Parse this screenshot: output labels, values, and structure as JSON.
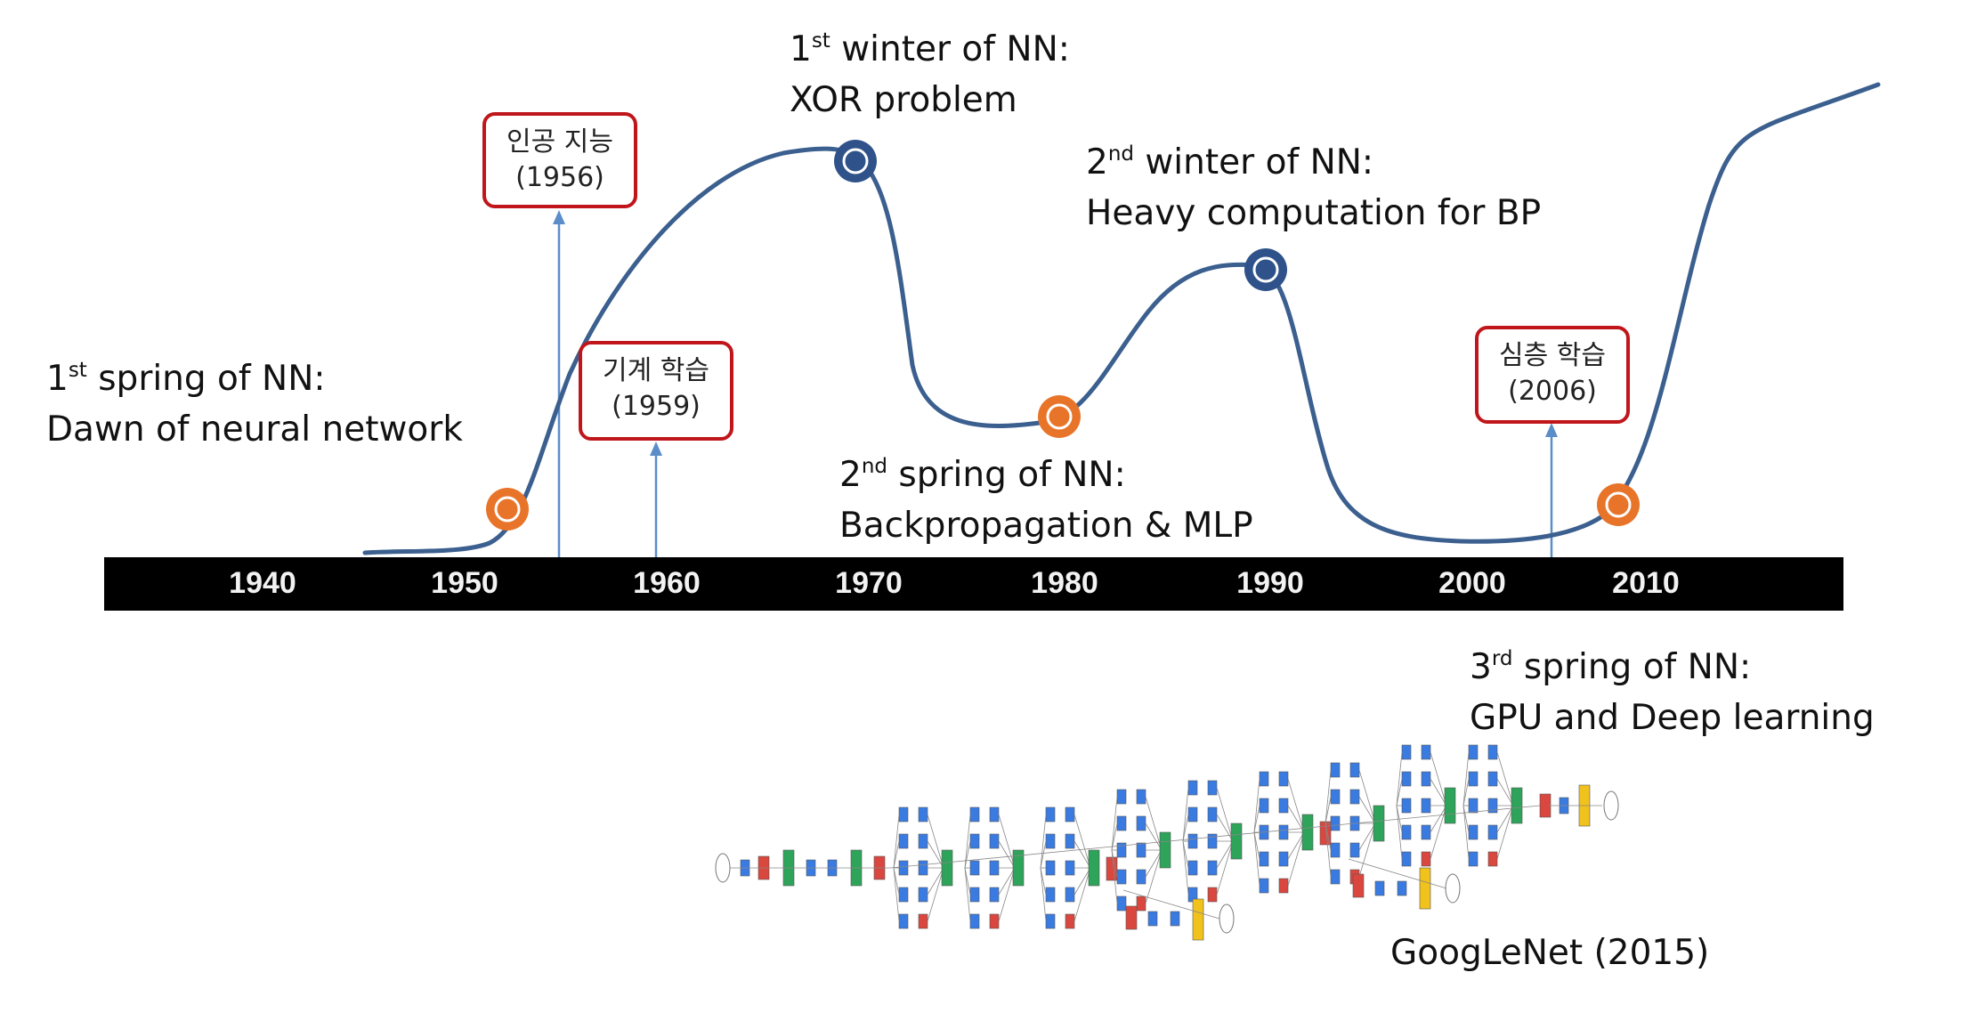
{
  "timeline": {
    "years": [
      "1940",
      "1950",
      "1960",
      "1970",
      "1980",
      "1990",
      "2000",
      "2010"
    ]
  },
  "events": {
    "spring1": {
      "ordinal": "1",
      "suffix": "st",
      "title": " spring of NN:",
      "subtitle": "Dawn of neural network"
    },
    "winter1": {
      "ordinal": "1",
      "suffix": "st",
      "title": " winter of NN:",
      "subtitle": "XOR problem"
    },
    "spring2": {
      "ordinal": "2",
      "suffix": "nd",
      "title": " spring of NN:",
      "subtitle": "Backpropagation & MLP"
    },
    "winter2": {
      "ordinal": "2",
      "suffix": "nd",
      "title": " winter of NN:",
      "subtitle": "Heavy computation for BP"
    },
    "spring3": {
      "ordinal": "3",
      "suffix": "rd",
      "title": " spring of NN:",
      "subtitle": "GPU and Deep learning"
    }
  },
  "milestones": {
    "ai": {
      "name": "인공 지능",
      "year": "(1956)"
    },
    "ml": {
      "name": "기계 학습",
      "year": "(1959)"
    },
    "dl": {
      "name": "심층 학습",
      "year": "(2006)"
    }
  },
  "googlenet": {
    "caption": "GoogLeNet (2015)"
  },
  "colors": {
    "curve": "#3b5f8e",
    "spring_marker": "#e8742a",
    "winter_marker": "#2e5289",
    "box_border": "#c0161b",
    "conv_blue": "#3a7be2",
    "pool_red": "#d9473f",
    "norm_green": "#2ea35a",
    "softmax_yellow": "#f0c21b"
  }
}
